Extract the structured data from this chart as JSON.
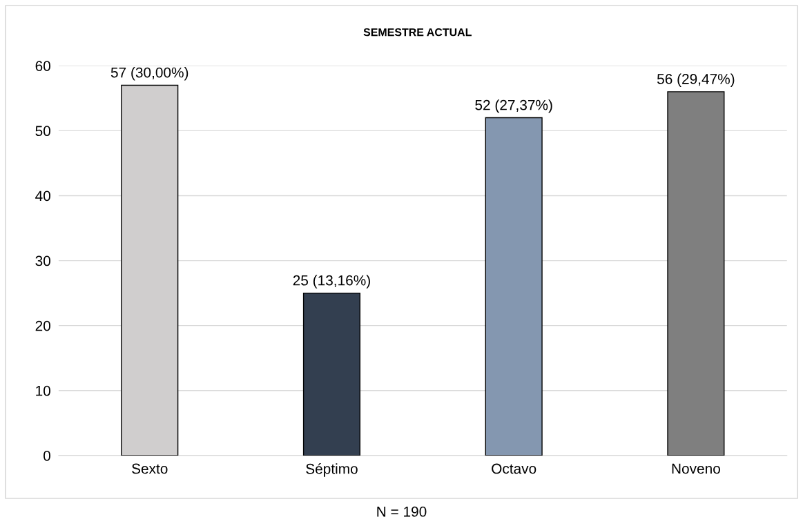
{
  "chart_data": {
    "type": "bar",
    "title": "SEMESTRE ACTUAL",
    "categories": [
      "Sexto",
      "Séptimo",
      "Octavo",
      "Noveno"
    ],
    "values": [
      57,
      25,
      52,
      56
    ],
    "colors": [
      "#d0cece",
      "#333f50",
      "#8497b0",
      "#7f7f7f"
    ],
    "value_labels": [
      "57 (30,00%)",
      "25 (13,16%)",
      "52 (27,37%)",
      "56 (29,47%)"
    ],
    "ylim": [
      0,
      60
    ],
    "yticks": [
      0,
      10,
      20,
      30,
      40,
      50,
      60
    ],
    "grid": "y",
    "annotations": [
      "N = 190"
    ]
  }
}
